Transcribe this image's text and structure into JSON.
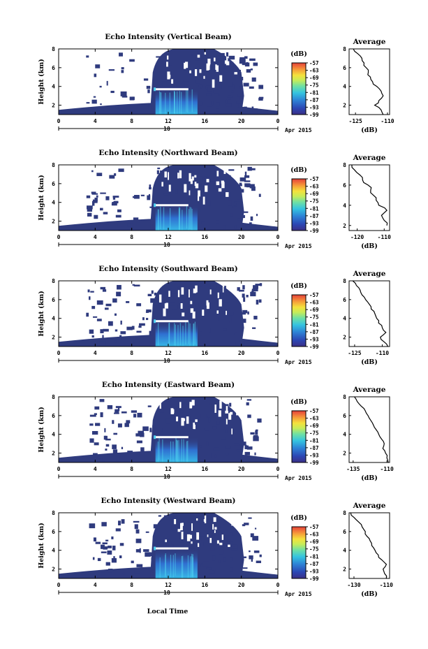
{
  "figure": {
    "xlabel": "Local Time",
    "date_label": "Apr 2015",
    "day_label": "18",
    "units_label": "(dB)"
  },
  "colors": {
    "background": "#ffffff",
    "base_echo": "#2f3b7e",
    "profile_line": "#000000"
  },
  "chart_data": [
    {
      "type": "heatmap",
      "title": "Echo Intensity (Vertical Beam)",
      "ylabel": "Height (km)",
      "x_ticks": [
        "0",
        "4",
        "8",
        "12",
        "16",
        "20",
        "0"
      ],
      "y_ticks": [
        "2",
        "4",
        "6",
        "8"
      ],
      "xlim": [
        0,
        24
      ],
      "ylim": [
        1,
        8
      ],
      "colorbar": {
        "ticks": [
          "-57",
          "-63",
          "-69",
          "-75",
          "-81",
          "-87",
          "-93",
          "-99"
        ],
        "range": [
          -99,
          -57
        ]
      },
      "melting_layer_km": 3.7,
      "average_profile": {
        "title": "Average",
        "xlabel": "(dB)",
        "x_ticks": [
          "-125",
          "-110"
        ],
        "y_ticks": [
          "2",
          "4",
          "6",
          "8"
        ],
        "xlim": [
          -128,
          -109
        ],
        "ylim": [
          1,
          8
        ],
        "height_km": [
          1.0,
          1.5,
          2.0,
          2.5,
          3.0,
          3.5,
          4.0,
          4.5,
          5.0,
          5.5,
          6.0,
          6.5,
          7.0,
          7.5,
          8.0
        ],
        "value_db": [
          -112,
          -113,
          -116,
          -114,
          -112,
          -113,
          -115,
          -117,
          -118,
          -119,
          -120,
          -121,
          -122,
          -124,
          -126
        ]
      }
    },
    {
      "type": "heatmap",
      "title": "Echo Intensity (Northward Beam)",
      "ylabel": "Height (km)",
      "x_ticks": [
        "0",
        "4",
        "8",
        "12",
        "16",
        "20",
        "0"
      ],
      "y_ticks": [
        "2",
        "4",
        "6",
        "8"
      ],
      "xlim": [
        0,
        24
      ],
      "ylim": [
        1,
        8
      ],
      "colorbar": {
        "ticks": [
          "-57",
          "-63",
          "-69",
          "-75",
          "-81",
          "-87",
          "-93",
          "-99"
        ],
        "range": [
          -99,
          -57
        ]
      },
      "melting_layer_km": 3.7,
      "average_profile": {
        "title": "Average",
        "xlabel": "(dB)",
        "x_ticks": [
          "-120",
          "-110"
        ],
        "y_ticks": [
          "2",
          "4",
          "6",
          "8"
        ],
        "xlim": [
          -123,
          -108
        ],
        "ylim": [
          1.5,
          8
        ],
        "height_km": [
          2.0,
          2.5,
          3.0,
          3.5,
          4.0,
          4.5,
          5.0,
          5.5,
          6.0,
          6.5,
          7.0,
          7.5,
          8.0
        ],
        "value_db": [
          -109,
          -110,
          -111,
          -109,
          -112,
          -113,
          -114,
          -115,
          -116,
          -118,
          -119,
          -121,
          -122
        ]
      }
    },
    {
      "type": "heatmap",
      "title": "Echo Intensity (Southward Beam)",
      "ylabel": "Height (km)",
      "x_ticks": [
        "0",
        "4",
        "8",
        "12",
        "16",
        "20",
        "0"
      ],
      "y_ticks": [
        "2",
        "4",
        "6",
        "8"
      ],
      "xlim": [
        0,
        24
      ],
      "ylim": [
        1,
        8
      ],
      "colorbar": {
        "ticks": [
          "-57",
          "-63",
          "-69",
          "-75",
          "-81",
          "-87",
          "-93",
          "-99"
        ],
        "range": [
          -99,
          -57
        ]
      },
      "melting_layer_km": 3.7,
      "average_profile": {
        "title": "Average",
        "xlabel": "(dB)",
        "x_ticks": [
          "-125",
          "-110"
        ],
        "y_ticks": [
          "2",
          "4",
          "6",
          "8"
        ],
        "xlim": [
          -128,
          -106
        ],
        "ylim": [
          1,
          8
        ],
        "height_km": [
          1.0,
          1.5,
          2.0,
          2.5,
          3.0,
          3.5,
          4.0,
          4.5,
          5.0,
          5.5,
          6.0,
          6.5,
          7.0,
          7.5,
          8.0
        ],
        "value_db": [
          -107,
          -109,
          -111,
          -108,
          -110,
          -112,
          -113,
          -114,
          -116,
          -117,
          -119,
          -121,
          -122,
          -124,
          -126
        ]
      }
    },
    {
      "type": "heatmap",
      "title": "Echo Intensity (Eastward Beam)",
      "ylabel": "Height (km)",
      "x_ticks": [
        "0",
        "4",
        "8",
        "12",
        "16",
        "20",
        "0"
      ],
      "y_ticks": [
        "2",
        "4",
        "6",
        "8"
      ],
      "xlim": [
        0,
        24
      ],
      "ylim": [
        1,
        8
      ],
      "colorbar": {
        "ticks": [
          "-57",
          "-63",
          "-69",
          "-75",
          "-81",
          "-87",
          "-93",
          "-99"
        ],
        "range": [
          -99,
          -57
        ]
      },
      "melting_layer_km": 3.7,
      "average_profile": {
        "title": "Average",
        "xlabel": "(dB)",
        "x_ticks": [
          "-135",
          "-110"
        ],
        "y_ticks": [
          "2",
          "4",
          "6",
          "8"
        ],
        "xlim": [
          -138,
          -108
        ],
        "ylim": [
          1,
          8
        ],
        "height_km": [
          1.0,
          1.5,
          2.0,
          2.5,
          3.0,
          3.5,
          4.0,
          4.5,
          5.0,
          5.5,
          6.0,
          6.5,
          7.0,
          7.5,
          8.0
        ],
        "value_db": [
          -109,
          -110,
          -111,
          -113,
          -112,
          -114,
          -116,
          -118,
          -120,
          -122,
          -124,
          -126,
          -129,
          -132,
          -134
        ]
      }
    },
    {
      "type": "heatmap",
      "title": "Echo Intensity (Westward Beam)",
      "ylabel": "Height (km)",
      "x_ticks": [
        "0",
        "4",
        "8",
        "12",
        "16",
        "20",
        "0"
      ],
      "y_ticks": [
        "2",
        "4",
        "6",
        "8"
      ],
      "xlim": [
        0,
        24
      ],
      "ylim": [
        1,
        8
      ],
      "colorbar": {
        "ticks": [
          "-57",
          "-63",
          "-69",
          "-75",
          "-81",
          "-87",
          "-93",
          "-99"
        ],
        "range": [
          -99,
          -57
        ]
      },
      "melting_layer_km": 4.2,
      "average_profile": {
        "title": "Average",
        "xlabel": "(dB)",
        "x_ticks": [
          "-130",
          "-110"
        ],
        "y_ticks": [
          "2",
          "4",
          "6",
          "8"
        ],
        "xlim": [
          -133,
          -108
        ],
        "ylim": [
          1,
          8
        ],
        "height_km": [
          1.0,
          1.5,
          2.0,
          2.5,
          3.0,
          3.5,
          4.0,
          4.5,
          5.0,
          5.5,
          6.0,
          6.5,
          7.0,
          7.5,
          8.0
        ],
        "value_db": [
          -110,
          -111,
          -112,
          -110,
          -113,
          -115,
          -117,
          -119,
          -120,
          -122,
          -123,
          -125,
          -127,
          -130,
          -132
        ]
      }
    }
  ]
}
